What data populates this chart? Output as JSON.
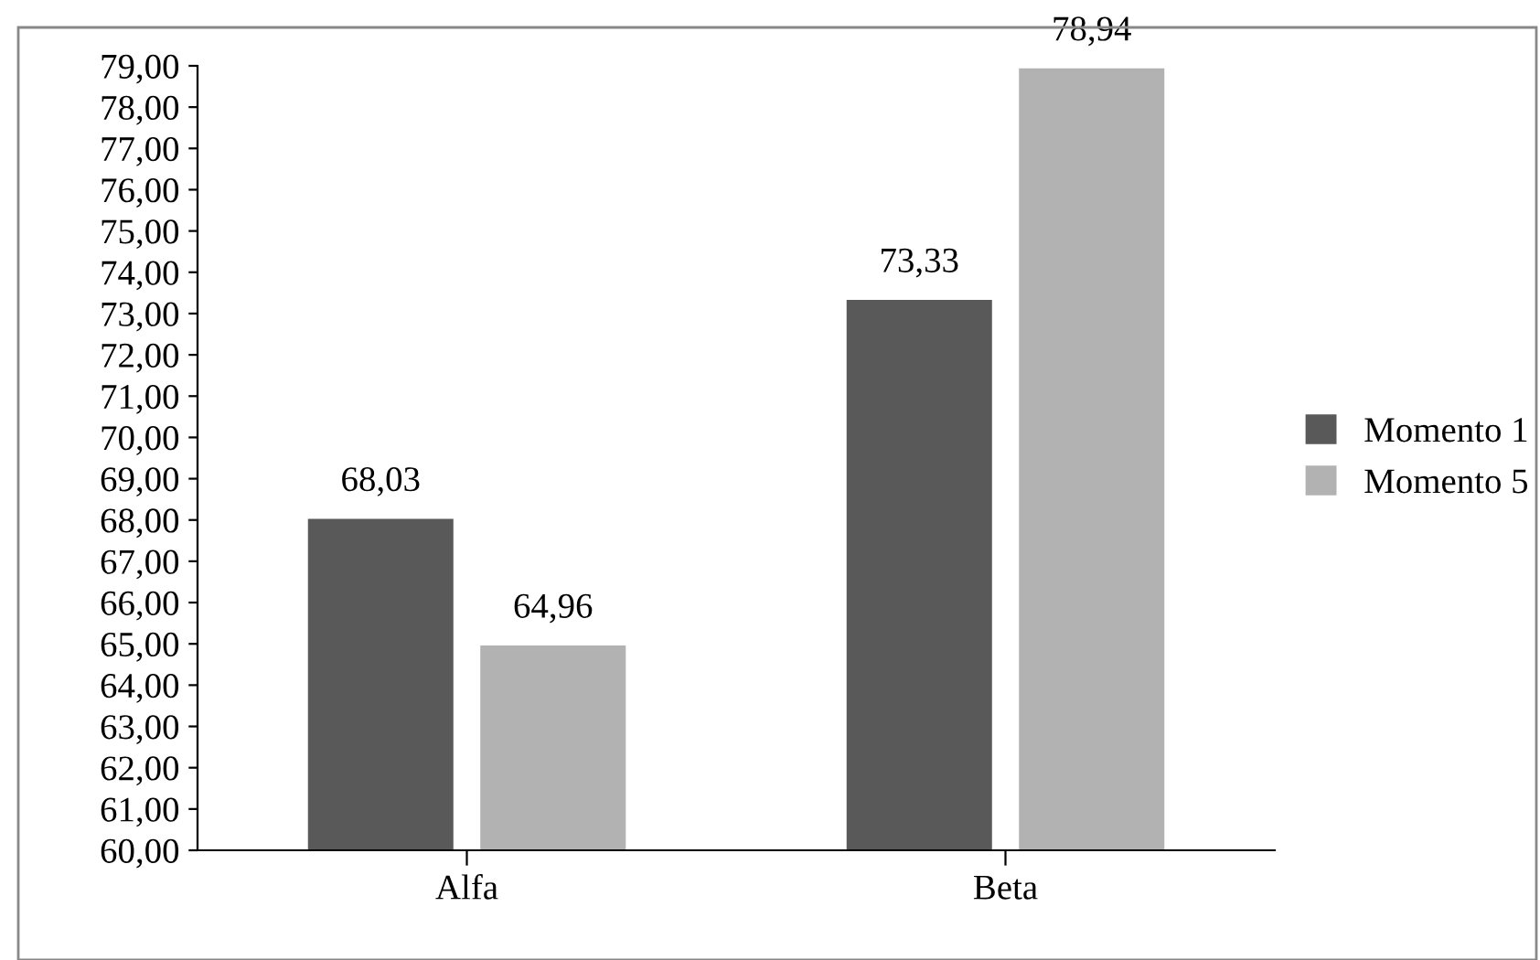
{
  "chart_data": {
    "type": "bar",
    "categories": [
      "Alfa",
      "Beta"
    ],
    "series": [
      {
        "name": "Momento 1",
        "color": "#595959",
        "values": [
          68.03,
          73.33
        ],
        "value_labels": [
          "68,03",
          "73,33"
        ]
      },
      {
        "name": "Momento 5",
        "color": "#b2b2b2",
        "values": [
          64.96,
          78.94
        ],
        "value_labels": [
          "64,96",
          "78,94"
        ]
      }
    ],
    "ylim": [
      60,
      79
    ],
    "yticks": [
      {
        "value": 60,
        "label": "60,00"
      },
      {
        "value": 61,
        "label": "61,00"
      },
      {
        "value": 62,
        "label": "62,00"
      },
      {
        "value": 63,
        "label": "63,00"
      },
      {
        "value": 64,
        "label": "64,00"
      },
      {
        "value": 65,
        "label": "65,00"
      },
      {
        "value": 66,
        "label": "66,00"
      },
      {
        "value": 67,
        "label": "67,00"
      },
      {
        "value": 68,
        "label": "68,00"
      },
      {
        "value": 69,
        "label": "69,00"
      },
      {
        "value": 70,
        "label": "70,00"
      },
      {
        "value": 71,
        "label": "71,00"
      },
      {
        "value": 72,
        "label": "72,00"
      },
      {
        "value": 73,
        "label": "73,00"
      },
      {
        "value": 74,
        "label": "74,00"
      },
      {
        "value": 75,
        "label": "75,00"
      },
      {
        "value": 76,
        "label": "76,00"
      },
      {
        "value": 77,
        "label": "77,00"
      },
      {
        "value": 78,
        "label": "78,00"
      },
      {
        "value": 79,
        "label": "79,00"
      }
    ],
    "legend": "right",
    "grid": false
  }
}
